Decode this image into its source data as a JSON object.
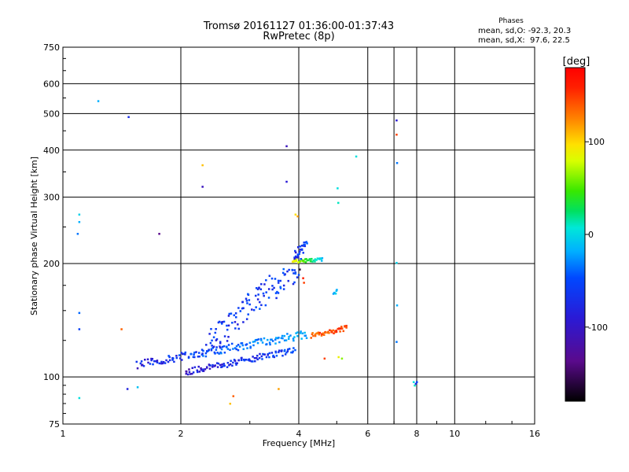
{
  "header": {
    "title": "Tromsø 20161127 01:36:00-01:37:43",
    "subtitle": "RwPretec (8p)"
  },
  "stats": {
    "heading": "Phases",
    "o_line": "mean, sd,O: -92.3, 20.3",
    "x_line": "mean, sd,X:  97.6, 22.5"
  },
  "chart_data": {
    "type": "scatter",
    "title": "Tromsø 20161127 01:36:00-01:37:43",
    "subtitle": "RwPretec (8p)",
    "xlabel": "Frequency [MHz]",
    "ylabel": "Stationary phase Virtual Height [km]",
    "x_scale": "log",
    "y_scale": "log",
    "xlim": [
      1,
      16
    ],
    "ylim": [
      75,
      750
    ],
    "x_ticks": [
      1,
      2,
      4,
      6,
      8,
      10,
      16
    ],
    "x_tick_labels": [
      "1",
      "2",
      "4",
      "6",
      "8",
      "10",
      "16"
    ],
    "x_grid": [
      2,
      4,
      6,
      7,
      8,
      10
    ],
    "y_ticks": [
      75,
      100,
      200,
      300,
      400,
      500,
      600,
      750
    ],
    "y_tick_labels": [
      "75",
      "100",
      "200",
      "300",
      "400",
      "500",
      "600",
      "750"
    ],
    "y_grid": [
      100,
      200,
      300,
      400,
      500,
      600
    ],
    "grid": true,
    "colorbar": {
      "label": "[deg]",
      "range": [
        -180,
        180
      ],
      "ticks": [
        -100,
        0,
        100
      ],
      "tick_labels": [
        "-100",
        "0",
        "100"
      ]
    },
    "traces": [
      {
        "f1": 1.55,
        "f2": 4.2,
        "h1": 108,
        "h2": 130,
        "phase1": -118,
        "phase2": -60,
        "count": 150,
        "spread": 0.025
      },
      {
        "f1": 2.05,
        "f2": 3.9,
        "h1": 103,
        "h2": 118,
        "phase1": -125,
        "phase2": -95,
        "count": 110,
        "spread": 0.02
      },
      {
        "f1": 4.3,
        "f2": 5.3,
        "h1": 129,
        "h2": 135,
        "phase1": 140,
        "phase2": 150,
        "count": 45,
        "spread": 0.015
      },
      {
        "f1": 3.85,
        "f2": 4.6,
        "h1": 203,
        "h2": 205,
        "phase1": 105,
        "phase2": -55,
        "count": 35,
        "spread": 0.01
      },
      {
        "f1": 2.3,
        "f2": 4.0,
        "h1": 120,
        "h2": 200,
        "phase1": -108,
        "phase2": -98,
        "count": 120,
        "spread": 0.08
      },
      {
        "f1": 3.9,
        "f2": 4.2,
        "h1": 210,
        "h2": 225,
        "phase1": -110,
        "phase2": -100,
        "count": 25,
        "spread": 0.03
      },
      {
        "f1": 4.9,
        "f2": 5.0,
        "h1": 165,
        "h2": 170,
        "phase1": -60,
        "phase2": -50,
        "count": 6,
        "spread": 0.01
      }
    ],
    "points": [
      {
        "x": 1.23,
        "y": 540,
        "phase": -60
      },
      {
        "x": 1.47,
        "y": 490,
        "phase": -110
      },
      {
        "x": 1.1,
        "y": 270,
        "phase": -40
      },
      {
        "x": 1.1,
        "y": 258,
        "phase": -60
      },
      {
        "x": 1.09,
        "y": 240,
        "phase": -80
      },
      {
        "x": 1.1,
        "y": 148,
        "phase": -85
      },
      {
        "x": 1.1,
        "y": 134,
        "phase": -100
      },
      {
        "x": 1.1,
        "y": 88,
        "phase": -30
      },
      {
        "x": 1.41,
        "y": 134,
        "phase": 140
      },
      {
        "x": 1.46,
        "y": 93,
        "phase": -115
      },
      {
        "x": 1.55,
        "y": 94,
        "phase": -50
      },
      {
        "x": 1.76,
        "y": 240,
        "phase": -150
      },
      {
        "x": 2.27,
        "y": 365,
        "phase": 110
      },
      {
        "x": 2.27,
        "y": 320,
        "phase": -130
      },
      {
        "x": 2.72,
        "y": 89,
        "phase": 140
      },
      {
        "x": 2.67,
        "y": 85,
        "phase": 110
      },
      {
        "x": 3.72,
        "y": 410,
        "phase": -130
      },
      {
        "x": 3.72,
        "y": 330,
        "phase": -120
      },
      {
        "x": 3.55,
        "y": 93,
        "phase": 120
      },
      {
        "x": 3.92,
        "y": 270,
        "phase": 100
      },
      {
        "x": 3.97,
        "y": 267,
        "phase": 120
      },
      {
        "x": 4.02,
        "y": 193,
        "phase": -170
      },
      {
        "x": 4.1,
        "y": 183,
        "phase": 160
      },
      {
        "x": 4.12,
        "y": 178,
        "phase": 150
      },
      {
        "x": 5.02,
        "y": 317,
        "phase": -30
      },
      {
        "x": 5.04,
        "y": 290,
        "phase": -20
      },
      {
        "x": 5.6,
        "y": 385,
        "phase": -30
      },
      {
        "x": 7.1,
        "y": 480,
        "phase": -120
      },
      {
        "x": 7.1,
        "y": 440,
        "phase": 150
      },
      {
        "x": 7.12,
        "y": 370,
        "phase": -80
      },
      {
        "x": 7.1,
        "y": 201,
        "phase": -40
      },
      {
        "x": 7.12,
        "y": 155,
        "phase": -60
      },
      {
        "x": 7.1,
        "y": 124,
        "phase": -80
      },
      {
        "x": 7.85,
        "y": 97,
        "phase": -30
      },
      {
        "x": 7.9,
        "y": 95,
        "phase": -20
      },
      {
        "x": 7.95,
        "y": 96,
        "phase": -110
      },
      {
        "x": 8.0,
        "y": 97,
        "phase": -100
      },
      {
        "x": 4.65,
        "y": 112,
        "phase": 150
      },
      {
        "x": 5.05,
        "y": 113,
        "phase": 90
      },
      {
        "x": 5.15,
        "y": 112,
        "phase": 60
      }
    ]
  }
}
